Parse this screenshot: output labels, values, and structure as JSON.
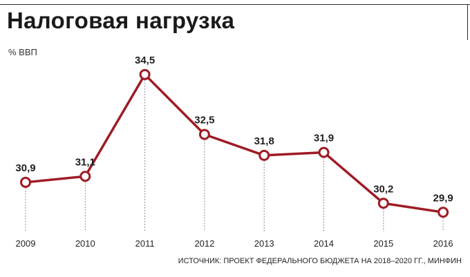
{
  "chart_data": {
    "type": "line",
    "title": "Налоговая нагрузка",
    "ylabel": "% ВВП",
    "xlabel": "",
    "categories": [
      "2009",
      "2010",
      "2011",
      "2012",
      "2013",
      "2014",
      "2015",
      "2016"
    ],
    "values": [
      30.9,
      31.1,
      34.5,
      32.5,
      31.8,
      31.9,
      30.2,
      29.9
    ],
    "value_labels": [
      "30,9",
      "31,1",
      "34,5",
      "32,5",
      "31,8",
      "31,9",
      "30,2",
      "29,9"
    ],
    "ylim": [
      29.5,
      35.5
    ],
    "grid": false,
    "legend": "none",
    "source": "ИСТОЧНИК: ПРОЕКТ ФЕДЕРАЛЬНОГО БЮДЖЕТА НА 2018–2020 ГГ., МИНФИН",
    "colors": {
      "line": "#9e1b24",
      "marker_fill": "#ffffff",
      "guide": "#8a8a8a",
      "frame": "#2b2b2b"
    }
  }
}
